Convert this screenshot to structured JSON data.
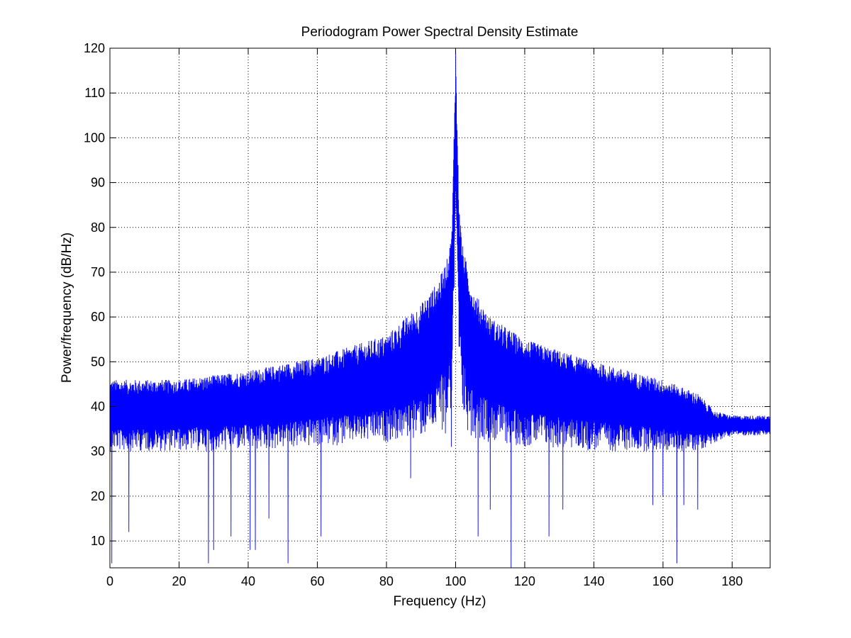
{
  "chart_data": {
    "type": "line",
    "title": "Periodogram Power Spectral Density Estimate",
    "xlabel": "Frequency (Hz)",
    "ylabel": "Power/frequency (dB/Hz)",
    "xlim": [
      0,
      191
    ],
    "ylim": [
      4,
      120
    ],
    "xticks": [
      0,
      20,
      40,
      60,
      80,
      100,
      120,
      140,
      160,
      180
    ],
    "yticks": [
      10,
      20,
      30,
      40,
      50,
      60,
      70,
      80,
      90,
      100,
      110,
      120
    ],
    "grid": true,
    "line_color": "#0000ff",
    "series": [
      {
        "name": "PSD",
        "description": "noisy periodogram with peak at 100 Hz",
        "peak_frequency": 100,
        "peak_value": 120,
        "envelope": {
          "x": [
            0,
            20,
            40,
            60,
            80,
            90,
            95,
            98,
            99,
            100,
            101,
            102,
            105,
            110,
            120,
            140,
            160,
            170,
            175,
            180,
            191
          ],
          "upper": [
            46,
            46,
            48,
            51,
            56,
            63,
            68,
            74,
            80,
            120,
            85,
            76,
            66,
            60,
            55,
            50,
            46,
            43,
            39,
            38,
            38
          ],
          "median": [
            38,
            38.5,
            40,
            41.5,
            44,
            48,
            54,
            62,
            72,
            100,
            73,
            62,
            52,
            47,
            44,
            41,
            38.5,
            36.5,
            35.5,
            35.5,
            35.5
          ],
          "lower": [
            30,
            30,
            30,
            31,
            32,
            33,
            34,
            36,
            40,
            80,
            40,
            36,
            33,
            32,
            31,
            30,
            30,
            30,
            32,
            33.5,
            33.5
          ],
          "deep_dips": [
            [
              0.5,
              5
            ],
            [
              5.5,
              12
            ],
            [
              28.5,
              5
            ],
            [
              30,
              8
            ],
            [
              35,
              11
            ],
            [
              40.5,
              8
            ],
            [
              42,
              8
            ],
            [
              46,
              15
            ],
            [
              51.5,
              5
            ],
            [
              61,
              11
            ],
            [
              87,
              24
            ],
            [
              97,
              34
            ],
            [
              98.7,
              31
            ],
            [
              106.5,
              11
            ],
            [
              110,
              17
            ],
            [
              116,
              4
            ],
            [
              127,
              11
            ],
            [
              131,
              17
            ],
            [
              157,
              18
            ],
            [
              160,
              20
            ],
            [
              164,
              5
            ],
            [
              166,
              18
            ],
            [
              170,
              17
            ]
          ]
        }
      }
    ]
  }
}
